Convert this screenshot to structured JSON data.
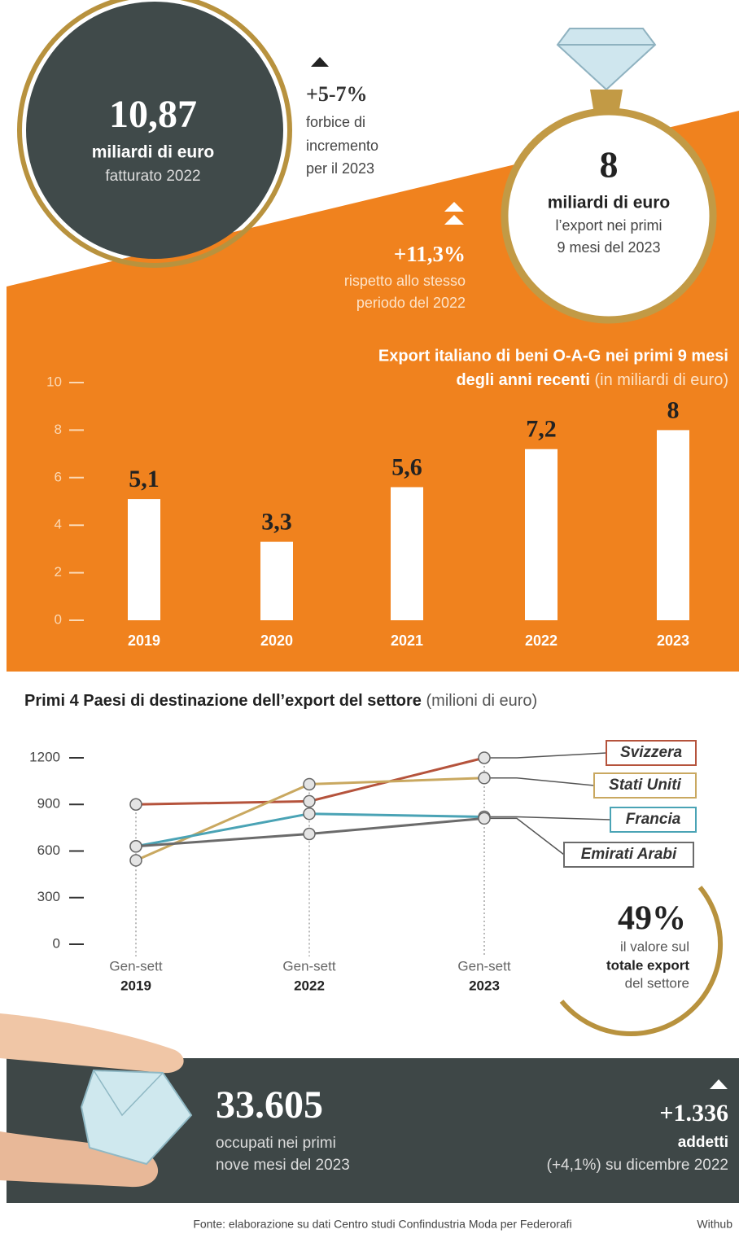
{
  "header": {
    "revenue": {
      "value": "10,87",
      "unit": "miliardi di euro",
      "label": "fatturato 2022"
    },
    "growth_forecast": {
      "value": "+5-7%",
      "lines": [
        "forbice di",
        "incremento",
        "per il  2023"
      ]
    },
    "export": {
      "value": "8",
      "unit": "miliardi di euro",
      "lines": [
        "l’export nei primi",
        "9 mesi del 2023"
      ]
    },
    "export_growth": {
      "value": "+11,3%",
      "lines": [
        "rispetto allo stesso",
        "periodo del 2022"
      ]
    }
  },
  "chart_data": [
    {
      "type": "bar",
      "title": [
        "Export italiano di beni O-A-G nei primi 9 mesi",
        "degli anni recenti"
      ],
      "subtitle": "(in miliardi di euro)",
      "categories": [
        "2019",
        "2020",
        "2021",
        "2022",
        "2023"
      ],
      "values": [
        5.1,
        3.3,
        5.6,
        7.2,
        8
      ],
      "value_labels": [
        "5,1",
        "3,3",
        "5,6",
        "7,2",
        "8"
      ],
      "color": "#ffffff",
      "ylim": [
        0,
        10
      ],
      "yticks": [
        0,
        2,
        4,
        6,
        8,
        10
      ]
    },
    {
      "type": "line",
      "title": "Primi 4 Paesi di destinazione dell’export del settore",
      "subtitle": "(milioni di euro)",
      "categories": [
        [
          "Gen-sett",
          "2019"
        ],
        [
          "Gen-sett",
          "2022"
        ],
        [
          "Gen-sett",
          "2023"
        ]
      ],
      "series": [
        {
          "name": "Svizzera",
          "color": "#b5533c",
          "values": [
            900,
            920,
            1200
          ]
        },
        {
          "name": "Stati Uniti",
          "color": "#c9a860",
          "values": [
            540,
            1030,
            1070
          ]
        },
        {
          "name": "Francia",
          "color": "#4aa3b5",
          "values": [
            630,
            840,
            820
          ]
        },
        {
          "name": "Emirati Arabi",
          "color": "#6b6b6b",
          "values": [
            630,
            710,
            810
          ]
        }
      ],
      "ylim": [
        0,
        1200
      ],
      "yticks": [
        0,
        300,
        600,
        900,
        1200
      ]
    }
  ],
  "share": {
    "value": "49%",
    "lines": [
      "il valore sul",
      "totale export",
      "del settore"
    ]
  },
  "employment": {
    "value": "33.605",
    "lines": [
      "occupati nei primi",
      "nove mesi del 2023"
    ],
    "change": "+1.336",
    "change_unit": "addetti",
    "change_note": "(+4,1%) su dicembre 2022"
  },
  "footer": {
    "source": "Fonte: elaborazione su dati Centro studi Confindustria Moda per Federorafi",
    "credit": "Withub"
  }
}
